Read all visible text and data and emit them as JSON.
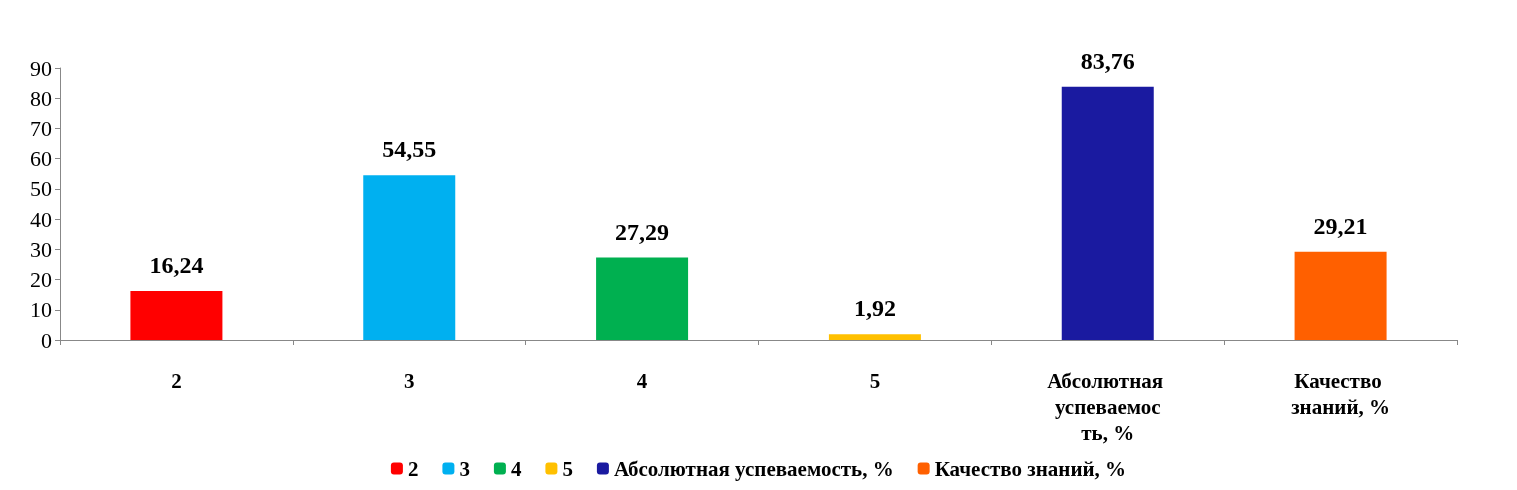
{
  "chart_data": {
    "type": "bar",
    "categories": [
      "2",
      "3",
      "4",
      "5",
      "Абсолютная успеваемость, %",
      "Качество знаний, %"
    ],
    "series": [
      {
        "name": "2",
        "color": "#ff0000",
        "values": [
          16.24,
          null,
          null,
          null,
          null,
          null
        ],
        "value_labels": [
          "16,24",
          null,
          null,
          null,
          null,
          null
        ]
      },
      {
        "name": "3",
        "color": "#00b0f0",
        "values": [
          null,
          54.55,
          null,
          null,
          null,
          null
        ],
        "value_labels": [
          null,
          "54,55",
          null,
          null,
          null,
          null
        ]
      },
      {
        "name": "4",
        "color": "#00b050",
        "values": [
          null,
          null,
          27.29,
          null,
          null,
          null
        ],
        "value_labels": [
          null,
          null,
          "27,29",
          null,
          null,
          null
        ]
      },
      {
        "name": "5",
        "color": "#ffc000",
        "values": [
          null,
          null,
          null,
          1.92,
          null,
          null
        ],
        "value_labels": [
          null,
          null,
          null,
          "1,92",
          null,
          null
        ]
      },
      {
        "name": "Абсолютная успеваемость, %",
        "color": "#1a1aa0",
        "values": [
          null,
          null,
          null,
          null,
          83.76,
          null
        ],
        "value_labels": [
          null,
          null,
          null,
          null,
          "83,76",
          null
        ]
      },
      {
        "name": "Качество знаний, %",
        "color": "#ff6000",
        "values": [
          null,
          null,
          null,
          null,
          null,
          29.21
        ],
        "value_labels": [
          null,
          null,
          null,
          null,
          null,
          "29,21"
        ]
      }
    ],
    "ylim": [
      0,
      90
    ],
    "yticks": [
      0,
      10,
      20,
      30,
      40,
      50,
      60,
      70,
      80,
      90
    ],
    "grid": false,
    "legend": "bottom"
  }
}
